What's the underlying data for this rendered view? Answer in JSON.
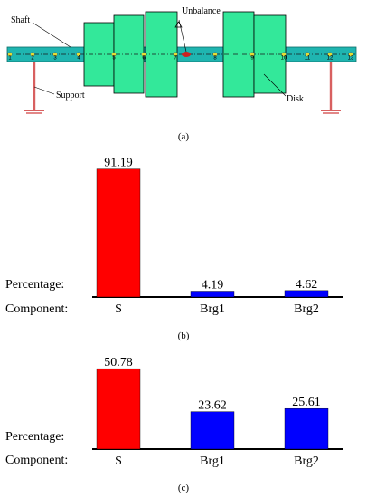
{
  "rotor_diagram": {
    "labels": {
      "shaft": "Shaft",
      "support": "Support",
      "unbalance": "Unbalance",
      "disk": "Disk"
    },
    "node_numbers": [
      "1",
      "2",
      "3",
      "4",
      "5",
      "6",
      "7",
      "8",
      "9",
      "10",
      "11",
      "12",
      "13"
    ],
    "caption": "(a)",
    "colors": {
      "shaft": "#1fb5b0",
      "disk": "#33e89a",
      "support": "#d86060",
      "unbalance": "#cc2222",
      "node": "#e6dd33"
    }
  },
  "chart_data": [
    {
      "type": "bar",
      "caption": "(b)",
      "row_labels": {
        "value": "Percentage:",
        "category": "Component:"
      },
      "categories": [
        "S",
        "Brg1",
        "Brg2"
      ],
      "values": [
        91.19,
        4.19,
        4.62
      ],
      "value_labels": [
        "91.19",
        "4.19",
        "4.62"
      ],
      "colors": [
        "#ff0000",
        "#0000ff",
        "#0000ff"
      ],
      "ylim": [
        0,
        100
      ],
      "title": "",
      "xlabel": "",
      "ylabel": ""
    },
    {
      "type": "bar",
      "caption": "(c)",
      "row_labels": {
        "value": "Percentage:",
        "category": "Component:"
      },
      "categories": [
        "S",
        "Brg1",
        "Brg2"
      ],
      "values": [
        50.78,
        23.62,
        25.61
      ],
      "value_labels": [
        "50.78",
        "23.62",
        "25.61"
      ],
      "colors": [
        "#ff0000",
        "#0000ff",
        "#0000ff"
      ],
      "ylim": [
        0,
        100
      ],
      "title": "",
      "xlabel": "",
      "ylabel": ""
    }
  ]
}
